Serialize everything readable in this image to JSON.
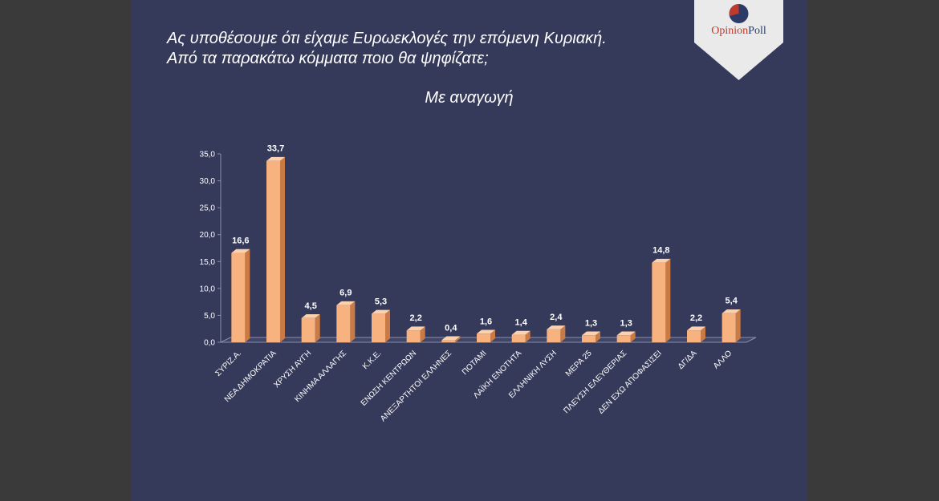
{
  "header": {
    "title_line1": "Ας υποθέσουμε ότι είχαμε Ευρωεκλογές την επόμενη Κυριακή.",
    "title_line2": "Από τα παρακάτω κόμματα ποιο θα ψηφίζατε;",
    "subtitle": "Με αναγωγή"
  },
  "logo": {
    "part1": "Opinion",
    "part2": "Poll"
  },
  "colors": {
    "background": "#353a5b",
    "bar_front": "#f7b27f",
    "bar_side": "#c97a45",
    "bar_top": "#fcd1b0",
    "text": "#ffffff"
  },
  "chart_data": {
    "type": "bar",
    "categories": [
      "ΣΥΡΙΖ.Α.",
      "ΝΕΑ ΔΗΜΟΚΡΑΤΙΑ",
      "ΧΡΥΣΗ ΑΥΓΗ",
      "ΚΙΝΗΜΑ ΑΛΛΑΓΗΣ",
      "Κ.Κ.Ε.",
      "ΕΝΩΣΗ ΚΕΝΤΡΩΩΝ",
      "ΑΝΕΞΑΡΤΗΤΟΙ ΕΛΛΗΝΕΣ",
      "ΠΟΤΑΜΙ",
      "ΛΑΪΚΗ ΕΝΟΤΗΤΑ",
      "ΕΛΛΗΝΙΚΗ ΛΥΣΗ",
      "ΜΕΡΑ 25",
      "ΠΛΕΥΣΗ ΕΛΕΥΘΕΡΙΑΣ",
      "ΔΕΝ ΕΧΩ ΑΠΟΦΑΣΙΣΕΙ",
      "ΔΓ/ΔΑ",
      "ΑΛΛΟ"
    ],
    "values": [
      16.6,
      33.7,
      4.5,
      6.9,
      5.3,
      2.2,
      0.4,
      1.6,
      1.4,
      2.4,
      1.3,
      1.3,
      14.8,
      2.2,
      5.4
    ],
    "value_labels": [
      "16,6",
      "33,7",
      "4,5",
      "6,9",
      "5,3",
      "2,2",
      "0,4",
      "1,6",
      "1,4",
      "2,4",
      "1,3",
      "1,3",
      "14,8",
      "2,2",
      "5,4"
    ],
    "yticks": [
      "0,0",
      "5,0",
      "10,0",
      "15,0",
      "20,0",
      "25,0",
      "30,0",
      "35,0"
    ],
    "ylim": [
      0,
      35
    ],
    "grid": false,
    "legend": "none"
  }
}
